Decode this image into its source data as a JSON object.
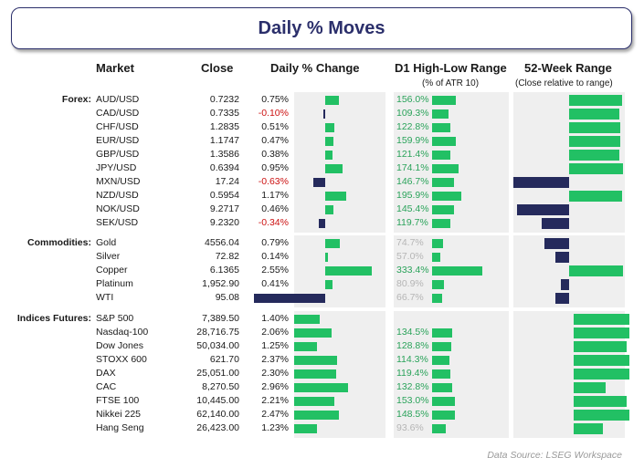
{
  "title": "Daily % Moves",
  "headers": {
    "market": "Market",
    "close": "Close",
    "daily_change": "Daily % Change",
    "d1_range": "D1 High-Low Range",
    "d1_range_sub": "(% of ATR 10)",
    "week52": "52-Week Range",
    "week52_sub": "(Close relative to range)"
  },
  "source": "Data Source: LSEG Workspace",
  "colors": {
    "positive": "#22c064",
    "negative": "#252a5c",
    "negative_text": "#cc1111",
    "title": "#2b2f6b"
  },
  "chart_data": {
    "type": "table",
    "groups": [
      {
        "name": "Forex:",
        "rows": [
          {
            "market": "AUD/USD",
            "close": "0.7232",
            "change": "0.75%",
            "change_val": 0.75,
            "range": "156.0%",
            "range_val": 156.0,
            "range_dim": false,
            "w52": 0.95
          },
          {
            "market": "CAD/USD",
            "close": "0.7335",
            "change": "-0.10%",
            "change_val": -0.1,
            "range": "109.3%",
            "range_val": 109.3,
            "range_dim": false,
            "w52": 0.9
          },
          {
            "market": "CHF/USD",
            "close": "1.2835",
            "change": "0.51%",
            "change_val": 0.51,
            "range": "122.8%",
            "range_val": 122.8,
            "range_dim": false,
            "w52": 0.92
          },
          {
            "market": "EUR/USD",
            "close": "1.1747",
            "change": "0.47%",
            "change_val": 0.47,
            "range": "159.9%",
            "range_val": 159.9,
            "range_dim": false,
            "w52": 0.92
          },
          {
            "market": "GBP/USD",
            "close": "1.3586",
            "change": "0.38%",
            "change_val": 0.38,
            "range": "121.4%",
            "range_val": 121.4,
            "range_dim": false,
            "w52": 0.9
          },
          {
            "market": "JPY/USD",
            "close": "0.6394",
            "change": "0.95%",
            "change_val": 0.95,
            "range": "174.1%",
            "range_val": 174.1,
            "range_dim": false,
            "w52": 0.97
          },
          {
            "market": "MXN/USD",
            "close": "17.24",
            "change": "-0.63%",
            "change_val": -0.63,
            "range": "146.7%",
            "range_val": 146.7,
            "range_dim": false,
            "w52": -1.0
          },
          {
            "market": "NZD/USD",
            "close": "0.5954",
            "change": "1.17%",
            "change_val": 1.17,
            "range": "195.9%",
            "range_val": 195.9,
            "range_dim": false,
            "w52": 0.95
          },
          {
            "market": "NOK/USD",
            "close": "9.2717",
            "change": "0.46%",
            "change_val": 0.46,
            "range": "145.4%",
            "range_val": 145.4,
            "range_dim": false,
            "w52": -0.93
          },
          {
            "market": "SEK/USD",
            "close": "9.2320",
            "change": "-0.34%",
            "change_val": -0.34,
            "range": "119.7%",
            "range_val": 119.7,
            "range_dim": false,
            "w52": -0.5
          }
        ]
      },
      {
        "name": "Commodities:",
        "rows": [
          {
            "market": "Gold",
            "close": "4556.04",
            "change": "0.79%",
            "change_val": 0.79,
            "range": "74.7%",
            "range_val": 74.7,
            "range_dim": true,
            "w52": -0.45
          },
          {
            "market": "Silver",
            "close": "72.82",
            "change": "0.14%",
            "change_val": 0.14,
            "range": "57.0%",
            "range_val": 57.0,
            "range_dim": true,
            "w52": -0.25
          },
          {
            "market": "Copper",
            "close": "6.1365",
            "change": "2.55%",
            "change_val": 2.55,
            "range": "333.4%",
            "range_val": 333.4,
            "range_dim": false,
            "w52": 0.97
          },
          {
            "market": "Platinum",
            "close": "1,952.90",
            "change": "0.41%",
            "change_val": 0.41,
            "range": "80.9%",
            "range_val": 80.9,
            "range_dim": true,
            "w52": -0.15
          },
          {
            "market": "WTI",
            "close": "95.08",
            "change": "-3.90%",
            "change_val": -3.9,
            "range": "66.7%",
            "range_val": 66.7,
            "range_dim": true,
            "w52": -0.25
          }
        ]
      },
      {
        "name": "Indices Futures:",
        "rows": [
          {
            "market": "S&P 500",
            "close": "7,389.50",
            "change": "1.40%",
            "change_val": 1.4,
            "range": "",
            "range_val": 0,
            "range_dim": false,
            "w52": 1.0
          },
          {
            "market": "Nasdaq-100",
            "close": "28,716.75",
            "change": "2.06%",
            "change_val": 2.06,
            "range": "134.5%",
            "range_val": 134.5,
            "range_dim": false,
            "w52": 1.0
          },
          {
            "market": "Dow Jones",
            "close": "50,034.00",
            "change": "1.25%",
            "change_val": 1.25,
            "range": "128.8%",
            "range_val": 128.8,
            "range_dim": false,
            "w52": 0.95
          },
          {
            "market": "STOXX 600",
            "close": "621.70",
            "change": "2.37%",
            "change_val": 2.37,
            "range": "114.3%",
            "range_val": 114.3,
            "range_dim": false,
            "w52": 1.0
          },
          {
            "market": "DAX",
            "close": "25,051.00",
            "change": "2.30%",
            "change_val": 2.3,
            "range": "119.4%",
            "range_val": 119.4,
            "range_dim": false,
            "w52": 1.0
          },
          {
            "market": "CAC",
            "close": "8,270.50",
            "change": "2.96%",
            "change_val": 2.96,
            "range": "132.8%",
            "range_val": 132.8,
            "range_dim": false,
            "w52": 0.58
          },
          {
            "market": "FTSE 100",
            "close": "10,445.00",
            "change": "2.21%",
            "change_val": 2.21,
            "range": "153.0%",
            "range_val": 153.0,
            "range_dim": false,
            "w52": 0.95
          },
          {
            "market": "Nikkei 225",
            "close": "62,140.00",
            "change": "2.47%",
            "change_val": 2.47,
            "range": "148.5%",
            "range_val": 148.5,
            "range_dim": false,
            "w52": 1.0
          },
          {
            "market": "Hang Seng",
            "close": "26,423.00",
            "change": "1.23%",
            "change_val": 1.23,
            "range": "93.6%",
            "range_val": 93.6,
            "range_dim": true,
            "w52": 0.52
          }
        ]
      }
    ]
  }
}
